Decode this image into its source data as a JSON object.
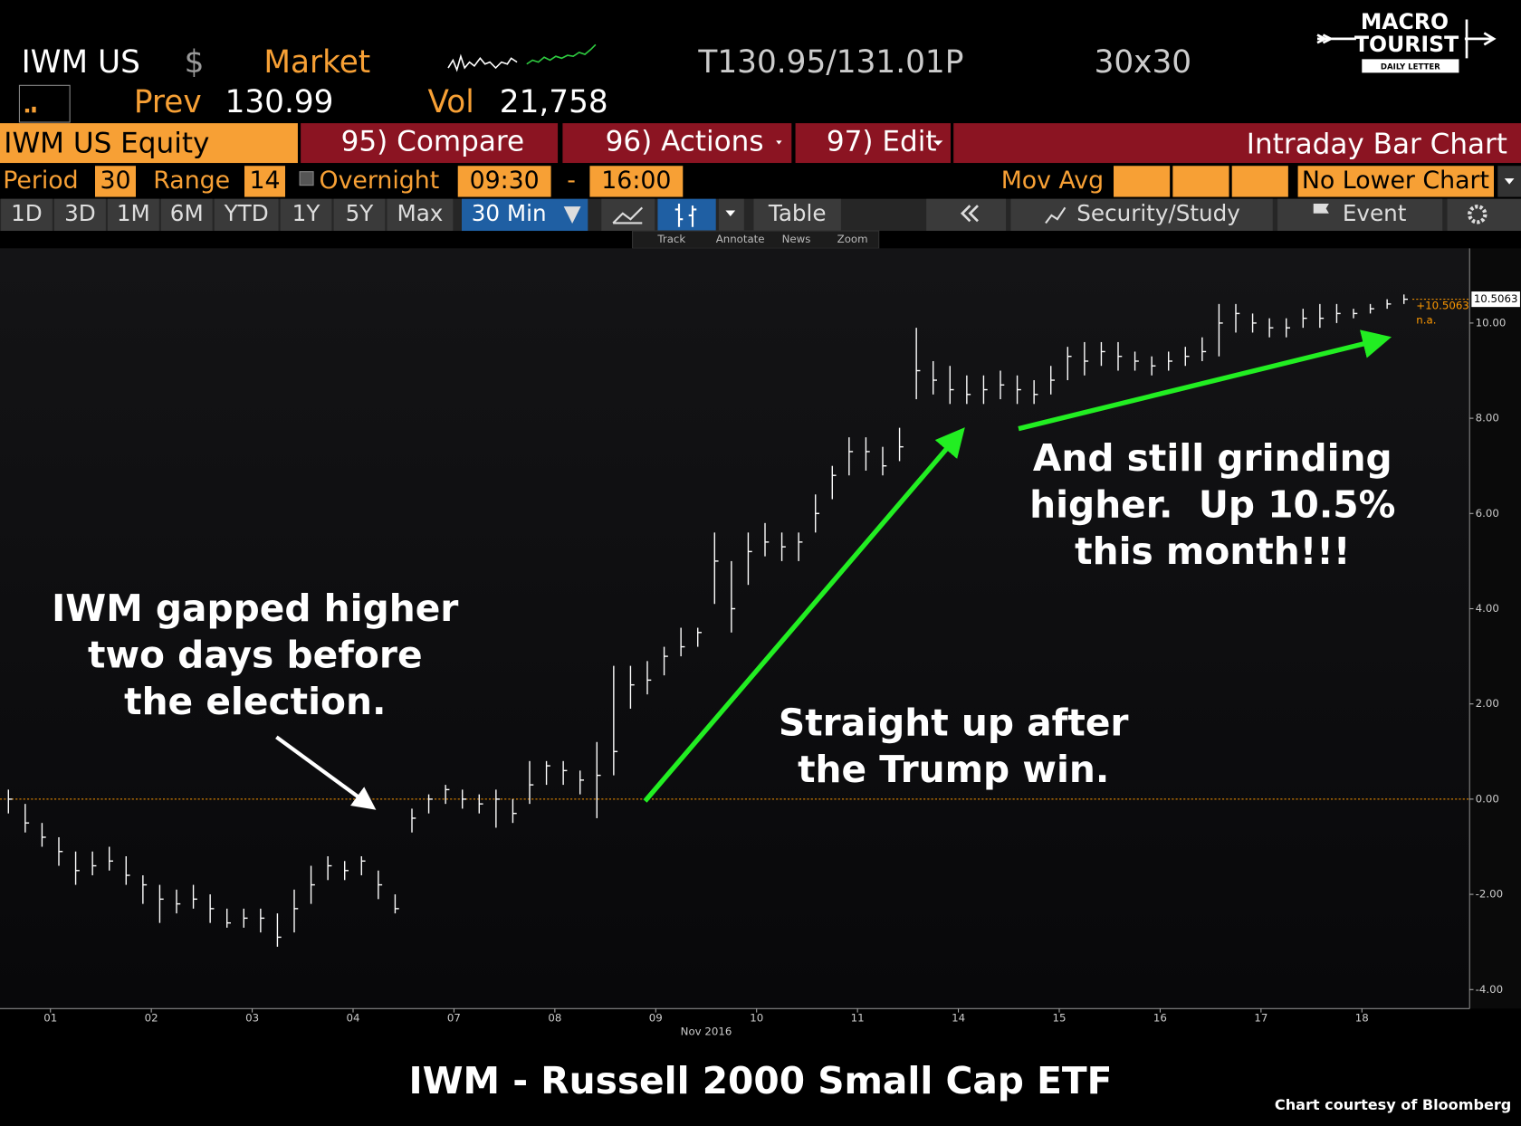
{
  "header": {
    "ticker": "IWM US",
    "currency": "$",
    "source": "Market",
    "quote": "T130.95/131.01P",
    "size": "30x30",
    "prev_label": "Prev",
    "prev_value": "130.99",
    "vol_label": "Vol",
    "vol_value": "21,758",
    "logo": [
      "MACRO",
      "TOURIST",
      "DAILY LETTER"
    ]
  },
  "menu": {
    "security": "IWM US Equity",
    "compare": "95) Compare",
    "actions": "96) Actions",
    "edit": "97) Edit",
    "chart_kind": "Intraday Bar Chart"
  },
  "settings": {
    "period_label": "Period",
    "period": "30",
    "range_label": "Range",
    "range": "14",
    "overnight": "Overnight",
    "start": "09:30",
    "dash": "-",
    "end": "16:00",
    "mov_avg": "Mov Avg",
    "lower_chart": "No Lower Chart"
  },
  "toolbar": {
    "ranges": [
      "1D",
      "3D",
      "1M",
      "6M",
      "YTD",
      "1Y",
      "5Y",
      "Max"
    ],
    "interval": "30 Min",
    "table": "Table",
    "security_study": "Security/Study",
    "event": "Event",
    "tools": [
      "Track",
      "Annotate",
      "News",
      "Zoom"
    ]
  },
  "chart_data": {
    "type": "ohlc",
    "title": "IWM - Russell 2000 Small Cap ETF",
    "credit": "Chart courtesy of Bloomberg",
    "x_label": "Nov 2016",
    "day_labels": [
      "01",
      "02",
      "03",
      "04",
      "07",
      "08",
      "09",
      "10",
      "11",
      "14",
      "15",
      "16",
      "17",
      "18"
    ],
    "color": "#ffffff",
    "high": [
      0.2,
      -0.1,
      -0.5,
      -0.8,
      -1.1,
      -1.1,
      -1.0,
      -1.2,
      -1.6,
      -1.8,
      -1.9,
      -1.8,
      -2.0,
      -2.3,
      -2.3,
      -2.3,
      -2.4,
      -1.9,
      -1.4,
      -1.2,
      -1.3,
      -1.2,
      -1.5,
      -2.0,
      -0.2,
      0.1,
      0.3,
      0.2,
      0.1,
      0.2,
      0.0,
      0.8,
      0.8,
      0.8,
      0.6,
      1.2,
      2.8,
      2.8,
      2.9,
      3.2,
      3.6,
      3.6,
      5.6,
      5.0,
      5.6,
      5.8,
      5.6,
      5.6,
      6.4,
      7.0,
      7.6,
      7.6,
      7.4,
      7.8,
      9.9,
      9.2,
      9.1,
      8.9,
      8.9,
      9.0,
      8.9,
      8.8,
      9.1,
      9.5,
      9.6,
      9.6,
      9.6,
      9.4,
      9.3,
      9.4,
      9.5,
      9.7,
      10.4,
      10.4,
      10.2,
      10.1,
      10.1,
      10.3,
      10.4,
      10.4,
      10.3,
      10.4,
      10.5,
      10.6
    ],
    "low": [
      -0.3,
      -0.7,
      -1.0,
      -1.4,
      -1.8,
      -1.6,
      -1.5,
      -1.8,
      -2.2,
      -2.6,
      -2.4,
      -2.3,
      -2.6,
      -2.7,
      -2.7,
      -2.8,
      -3.1,
      -2.8,
      -2.2,
      -1.7,
      -1.7,
      -1.6,
      -2.1,
      -2.4,
      -0.7,
      -0.3,
      -0.1,
      -0.2,
      -0.3,
      -0.6,
      -0.5,
      -0.1,
      0.3,
      0.3,
      0.1,
      -0.4,
      0.5,
      1.9,
      2.2,
      2.6,
      3.0,
      3.2,
      4.1,
      3.5,
      4.5,
      5.1,
      5.0,
      5.0,
      5.6,
      6.3,
      6.8,
      6.9,
      6.8,
      7.1,
      8.4,
      8.5,
      8.3,
      8.3,
      8.3,
      8.4,
      8.3,
      8.3,
      8.5,
      8.8,
      8.9,
      9.1,
      9.0,
      9.0,
      8.9,
      9.0,
      9.1,
      9.2,
      9.3,
      9.8,
      9.8,
      9.7,
      9.7,
      9.9,
      9.9,
      10.0,
      10.1,
      10.2,
      10.3,
      10.4
    ],
    "close": [
      0.0,
      -0.5,
      -0.8,
      -1.1,
      -1.5,
      -1.4,
      -1.3,
      -1.6,
      -1.8,
      -2.1,
      -2.2,
      -2.1,
      -2.3,
      -2.6,
      -2.5,
      -2.5,
      -2.9,
      -2.3,
      -1.8,
      -1.4,
      -1.5,
      -1.3,
      -1.8,
      -2.3,
      -0.4,
      0.0,
      0.2,
      0.0,
      -0.1,
      0.0,
      -0.3,
      0.3,
      0.7,
      0.6,
      0.4,
      0.5,
      1.0,
      2.4,
      2.5,
      3.0,
      3.2,
      3.5,
      5.0,
      4.0,
      5.2,
      5.4,
      5.3,
      5.4,
      6.0,
      6.8,
      7.3,
      7.3,
      7.0,
      7.4,
      9.0,
      8.8,
      8.6,
      8.5,
      8.6,
      8.7,
      8.6,
      8.5,
      8.8,
      9.3,
      9.2,
      9.4,
      9.3,
      9.2,
      9.1,
      9.2,
      9.3,
      9.4,
      10.0,
      10.2,
      10.0,
      9.9,
      9.9,
      10.1,
      10.1,
      10.2,
      10.2,
      10.3,
      10.4,
      10.5
    ],
    "reference_value": 0,
    "reference_color": "#ff9900",
    "ylim": [
      -4.4,
      11.57
    ],
    "yticks": [
      {
        "value": -4,
        "label": "-4.00"
      },
      {
        "value": -2,
        "label": "-2.00"
      },
      {
        "value": 0,
        "label": "0.00"
      },
      {
        "value": 2,
        "label": "2.00"
      },
      {
        "value": 4,
        "label": "4.00"
      },
      {
        "value": 6,
        "label": "6.00"
      },
      {
        "value": 8,
        "label": "8.00"
      },
      {
        "value": 10,
        "label": "10.00"
      }
    ],
    "grid": false,
    "last_value_label": "10.5063",
    "change_label": "+10.5063",
    "other_label": "n.a.",
    "annotations": [
      {
        "lines": [
          "IWM gapped higher",
          "two days before",
          "the election."
        ]
      },
      {
        "lines": [
          "Straight up after",
          "the Trump win."
        ]
      },
      {
        "lines": [
          "And still grinding",
          "higher.  Up 10.5%",
          "this month!!!"
        ]
      }
    ]
  }
}
